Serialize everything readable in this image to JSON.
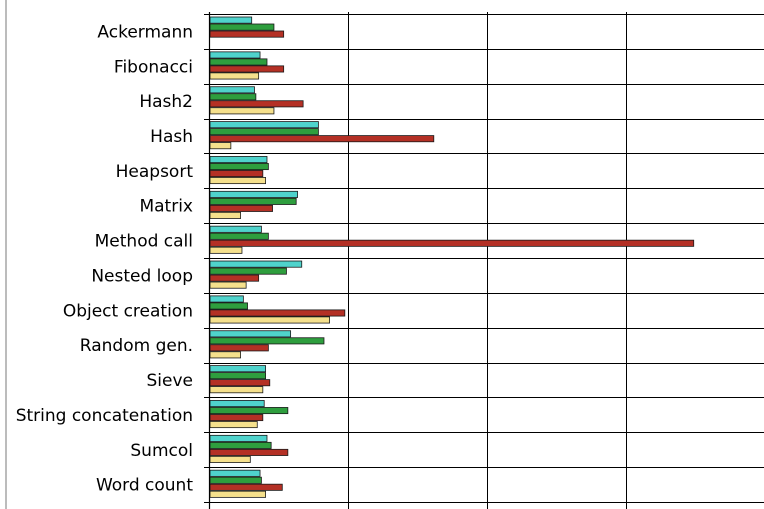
{
  "chart_data": {
    "type": "bar",
    "orientation": "horizontal",
    "title": "",
    "xlabel": "",
    "ylabel": "",
    "grid": true,
    "legend": "none",
    "xlim": [
      0,
      4
    ],
    "categories": [
      "Ackermann",
      "Fibonacci",
      "Hash2",
      "Hash",
      "Heapsort",
      "Matrix",
      "Method call",
      "Nested loop",
      "Object creation",
      "Random gen.",
      "Sieve",
      "String concatenation",
      "Sumcol",
      "Word count"
    ],
    "series": [
      {
        "color": "#4fd3cc",
        "values": [
          0.3,
          0.36,
          0.32,
          0.78,
          0.41,
          0.63,
          0.37,
          0.66,
          0.24,
          0.58,
          0.4,
          0.39,
          0.41,
          0.36
        ]
      },
      {
        "color": "#2e9e3e",
        "values": [
          0.46,
          0.41,
          0.33,
          0.78,
          0.42,
          0.62,
          0.42,
          0.55,
          0.27,
          0.82,
          0.4,
          0.56,
          0.44,
          0.37
        ]
      },
      {
        "color": "#b43025",
        "values": [
          0.53,
          0.53,
          0.67,
          1.61,
          0.38,
          0.45,
          3.48,
          0.35,
          0.97,
          0.42,
          0.43,
          0.38,
          0.56,
          0.52
        ]
      },
      {
        "color": "#f5e08c",
        "values": [
          0.0,
          0.35,
          0.46,
          0.15,
          0.4,
          0.22,
          0.23,
          0.26,
          0.86,
          0.22,
          0.38,
          0.34,
          0.29,
          0.4
        ]
      }
    ]
  }
}
